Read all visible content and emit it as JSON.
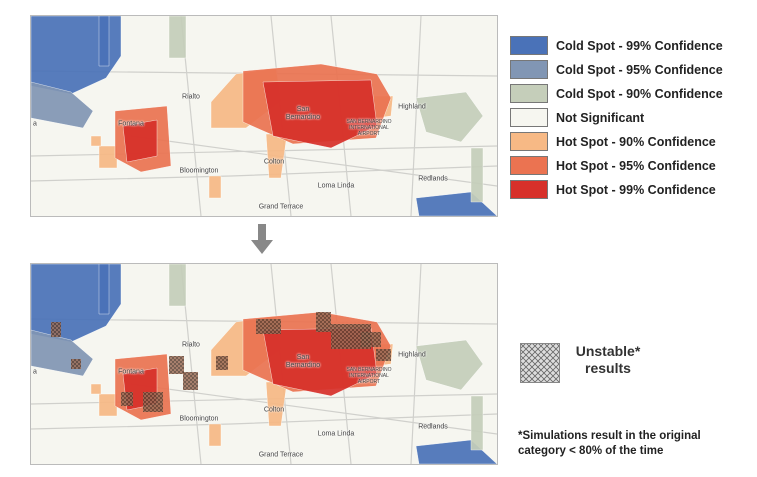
{
  "legend": {
    "items": [
      {
        "label": "Cold Spot - 99% Confidence",
        "color": "#4a72b8"
      },
      {
        "label": "Cold Spot - 95% Confidence",
        "color": "#8196b4"
      },
      {
        "label": "Cold Spot - 90% Confidence",
        "color": "#c5ceba"
      },
      {
        "label": "Not Significant",
        "color": "#f6f6f0"
      },
      {
        "label": "Hot Spot - 90% Confidence",
        "color": "#f7b985"
      },
      {
        "label": "Hot Spot - 95% Confidence",
        "color": "#eb7351"
      },
      {
        "label": "Hot Spot - 99% Confidence",
        "color": "#d7302a"
      }
    ]
  },
  "maps": [
    {
      "labels": [
        "Fontana",
        "Rialto",
        "San Bernardino",
        "SAN BERNARDINO INTERNATIONAL AIRPORT",
        "Highland",
        "Colton",
        "Bloomington",
        "Loma Linda",
        "Redlands",
        "Grand Terrace",
        "a"
      ]
    },
    {
      "labels": [
        "Fontana",
        "Rialto",
        "San Bernardino",
        "SAN BERNARDINO INTERNATIONAL AIRPORT",
        "Highland",
        "Colton",
        "Bloomington",
        "Loma Linda",
        "Redlands",
        "Grand Terrace",
        "a"
      ]
    }
  ],
  "unstable": {
    "label": "Unstable* results"
  },
  "footnote": "*Simulations result in the original category < 80% of the time"
}
